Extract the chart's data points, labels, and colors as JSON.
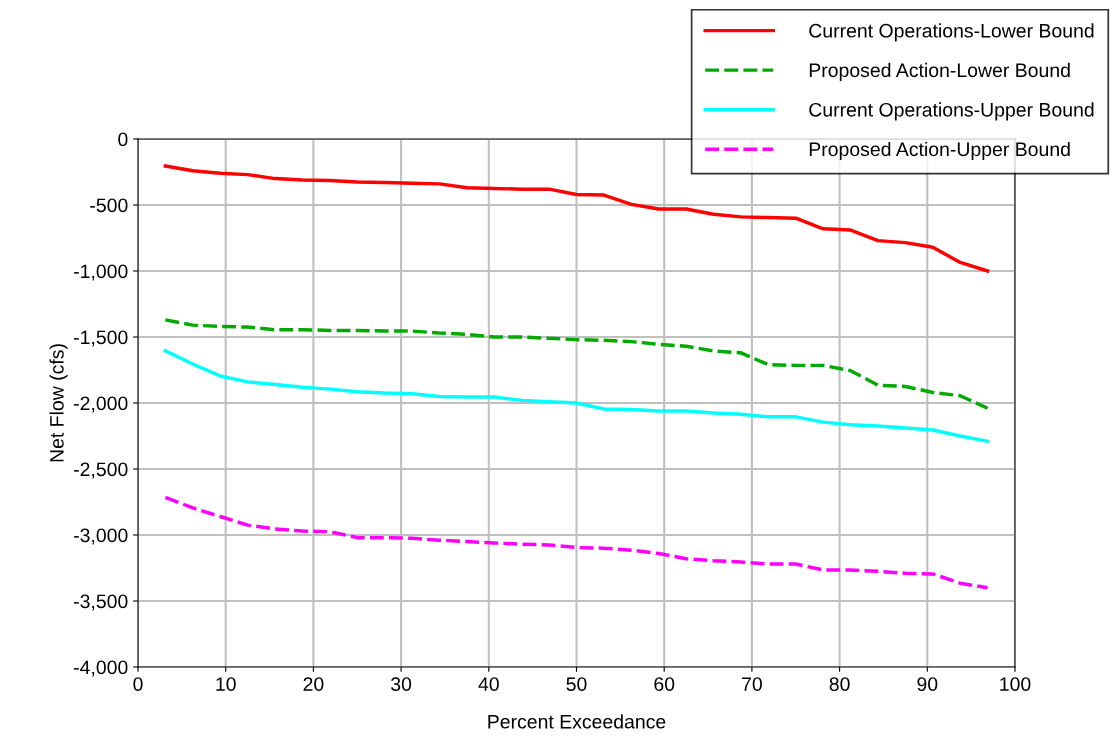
{
  "chart_data": {
    "type": "line",
    "xlabel": "Percent Exceedance",
    "ylabel": "Net Flow (cfs)",
    "x": [
      3.125,
      6.25,
      9.375,
      12.5,
      15.625,
      18.75,
      21.875,
      25,
      28.125,
      31.25,
      34.375,
      37.5,
      40.625,
      43.75,
      46.875,
      50,
      53.125,
      56.25,
      59.375,
      62.5,
      65.625,
      68.75,
      71.875,
      75,
      78.125,
      81.25,
      84.375,
      87.5,
      90.625,
      93.75,
      96.875
    ],
    "series": [
      {
        "name": "Current Operations-Lower Bound",
        "color": "#ff0000",
        "line_style": "solid",
        "values": [
          -205,
          -240,
          -260,
          -270,
          -300,
          -310,
          -315,
          -325,
          -330,
          -335,
          -340,
          -370,
          -375,
          -380,
          -380,
          -420,
          -425,
          -495,
          -530,
          -530,
          -570,
          -590,
          -595,
          -600,
          -680,
          -690,
          -770,
          -785,
          -820,
          -935,
          -1000
        ]
      },
      {
        "name": "Proposed Action-Lower Bound",
        "color": "#00aa00",
        "line_style": "dashed",
        "values": [
          -1370,
          -1410,
          -1420,
          -1425,
          -1445,
          -1445,
          -1450,
          -1450,
          -1455,
          -1455,
          -1470,
          -1480,
          -1500,
          -1500,
          -1510,
          -1520,
          -1525,
          -1535,
          -1555,
          -1570,
          -1605,
          -1620,
          -1710,
          -1715,
          -1715,
          -1755,
          -1865,
          -1875,
          -1920,
          -1945,
          -2040
        ]
      },
      {
        "name": "Current Operations-Upper Bound",
        "color": "#00ffff",
        "line_style": "solid",
        "values": [
          -1605,
          -1705,
          -1795,
          -1840,
          -1860,
          -1880,
          -1895,
          -1915,
          -1925,
          -1930,
          -1950,
          -1955,
          -1955,
          -1980,
          -1990,
          -2000,
          -2045,
          -2050,
          -2060,
          -2060,
          -2075,
          -2085,
          -2105,
          -2105,
          -2145,
          -2165,
          -2175,
          -2190,
          -2205,
          -2250,
          -2290
        ]
      },
      {
        "name": "Proposed Action-Upper Bound",
        "color": "#ff00ff",
        "line_style": "dashed",
        "values": [
          -2715,
          -2795,
          -2860,
          -2925,
          -2955,
          -2970,
          -2975,
          -3020,
          -3020,
          -3025,
          -3040,
          -3050,
          -3060,
          -3070,
          -3075,
          -3095,
          -3100,
          -3115,
          -3140,
          -3180,
          -3195,
          -3205,
          -3220,
          -3220,
          -3265,
          -3265,
          -3275,
          -3290,
          -3295,
          -3365,
          -3400
        ]
      }
    ],
    "xlim": [
      0,
      100
    ],
    "xticks": [
      0,
      10,
      20,
      30,
      40,
      50,
      60,
      70,
      80,
      90,
      100
    ],
    "ylim": [
      -4000,
      0
    ],
    "yticks": [
      {
        "value": -4000,
        "label": "-4,000"
      },
      {
        "value": -3500,
        "label": "-3,500"
      },
      {
        "value": -3000,
        "label": "-3,000"
      },
      {
        "value": -2500,
        "label": "-2,500"
      },
      {
        "value": -2000,
        "label": "-2,000"
      },
      {
        "value": -1500,
        "label": "-1,500"
      },
      {
        "value": -1000,
        "label": "-1,000"
      },
      {
        "value": -500,
        "label": "-500"
      },
      {
        "value": 0,
        "label": "0"
      }
    ],
    "grid": true,
    "legend": "top right",
    "marker": "none"
  }
}
